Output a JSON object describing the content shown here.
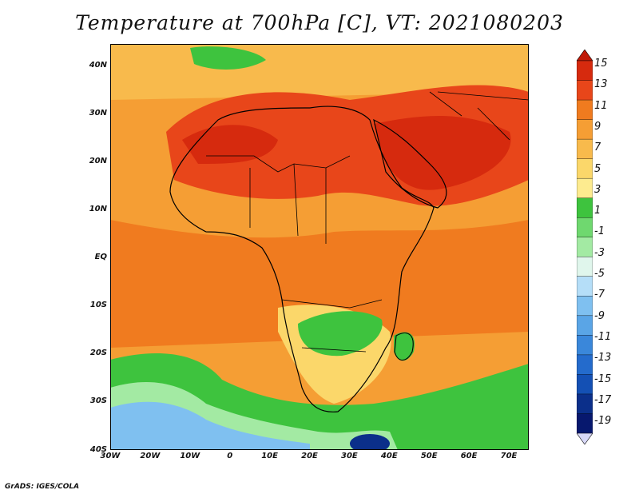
{
  "title": "Temperature at 700hPa [C], VT: 2021080203",
  "credit": "GrADS: IGES/COLA",
  "map": {
    "lat_ticks": [
      "40N",
      "30N",
      "20N",
      "10N",
      "EQ",
      "10S",
      "20S",
      "30S",
      "40S"
    ],
    "lon_ticks": [
      "30W",
      "20W",
      "10W",
      "0",
      "10E",
      "20E",
      "30E",
      "40E",
      "50E",
      "60E",
      "70E"
    ],
    "lon_range": [
      -30,
      75
    ],
    "lat_range": [
      -40,
      45
    ]
  },
  "colorbar": {
    "labels": [
      "15",
      "13",
      "11",
      "9",
      "7",
      "5",
      "3",
      "1",
      "-1",
      "-3",
      "-5",
      "-7",
      "-9",
      "-11",
      "-13",
      "-15",
      "-17",
      "-19"
    ],
    "colors": [
      "#d62a0e",
      "#e8461a",
      "#f07b1f",
      "#f59e34",
      "#f8ba4c",
      "#fbd76a",
      "#fdeb8f",
      "#3ec33e",
      "#6fd86f",
      "#a3eaa3",
      "#e0f6ec",
      "#b5def8",
      "#7fc0f0",
      "#5aa5e6",
      "#3a87da",
      "#246bcc",
      "#1450b4",
      "#0b2f8a",
      "#07186e"
    ],
    "top_arrow_color": "#c01a08",
    "bottom_arrow_color": "#d8d8f8"
  }
}
